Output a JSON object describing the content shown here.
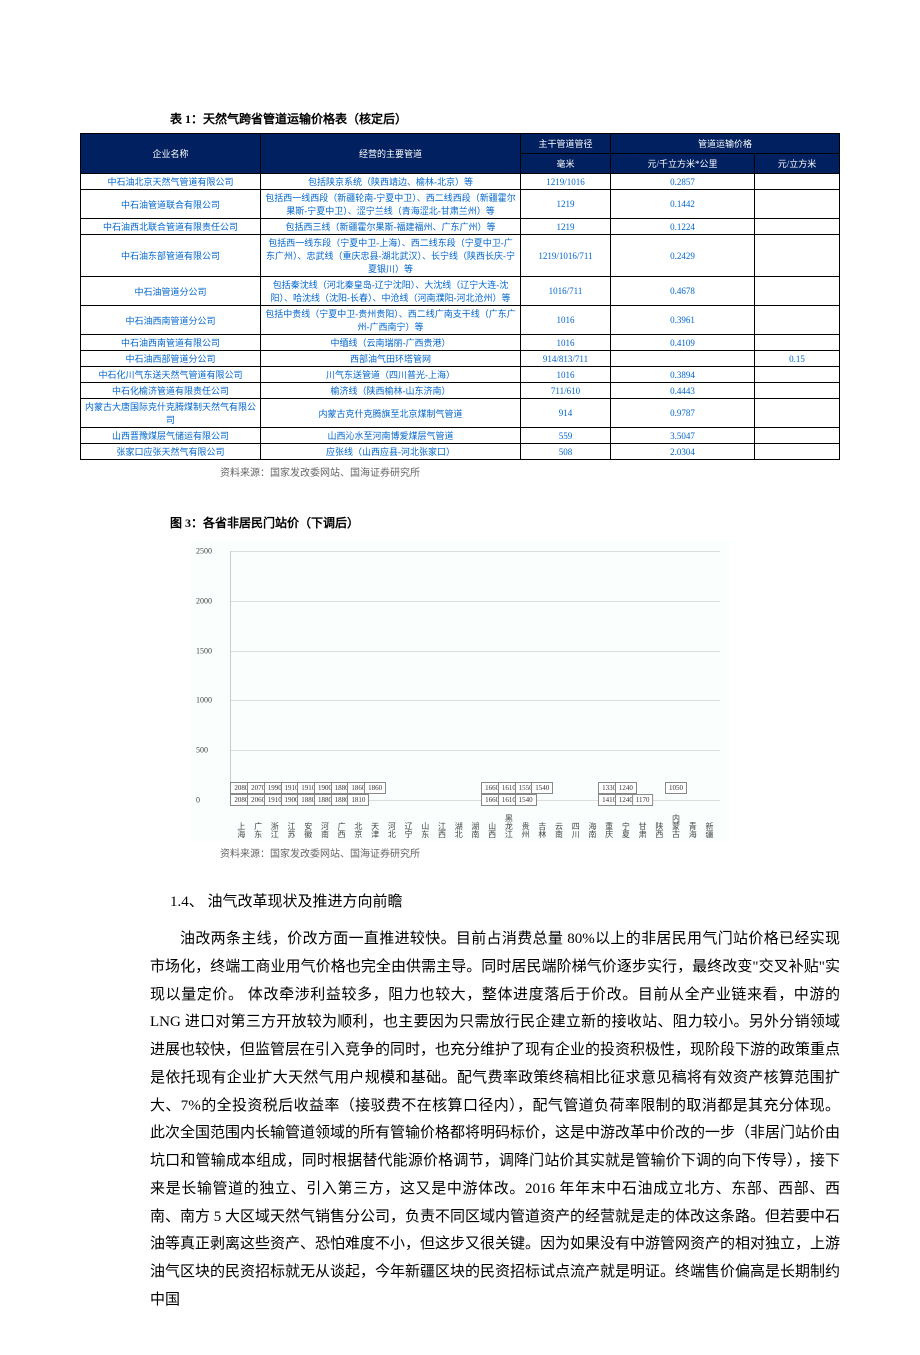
{
  "table": {
    "title": "表 1：天然气跨省管道运输价格表（核定后）",
    "headers": {
      "company": "企业名称",
      "pipeline": "经营的主要管道",
      "diameter_group": "主干管道管径",
      "diameter_unit": "毫米",
      "price_group": "管道运输价格",
      "price_unit1": "元/千立方米*公里",
      "price_unit2": "元/立方米"
    },
    "rows": [
      {
        "c": "中石油北京天然气管道有限公司",
        "p": "包括陕京系统（陕西靖边、榆林-北京）等",
        "d": "1219/1016",
        "p1": "0.2857",
        "p2": ""
      },
      {
        "c": "中石油管道联合有限公司",
        "p": "包括西一线西段（新疆轮南-宁夏中卫）、西二线西段（新疆霍尔果斯-宁夏中卫）、涩宁兰线（青海涩北-甘肃兰州）等",
        "d": "1219",
        "p1": "0.1442",
        "p2": ""
      },
      {
        "c": "中石油西北联合管道有限责任公司",
        "p": "包括西三线（新疆霍尔果斯-福建福州、广东广州）等",
        "d": "1219",
        "p1": "0.1224",
        "p2": ""
      },
      {
        "c": "中石油东部管道有限公司",
        "p": "包括西一线东段（宁夏中卫-上海）、西二线东段（宁夏中卫-广东广州）、忠武线（重庆忠县-湖北武汉）、长宁线（陕西长庆-宁夏银川）等",
        "d": "1219/1016/711",
        "p1": "0.2429",
        "p2": ""
      },
      {
        "c": "中石油管道分公司",
        "p": "包括秦沈线（河北秦皇岛-辽宁沈阳）、大沈线（辽宁大连-沈阳）、哈沈线（沈阳-长春）、中沧线（河南濮阳-河北沧州）等",
        "d": "1016/711",
        "p1": "0.4678",
        "p2": ""
      },
      {
        "c": "中石油西南管道分公司",
        "p": "包括中贵线（宁夏中卫-贵州贵阳）、西二线广南支干线（广东广州-广西南宁）等",
        "d": "1016",
        "p1": "0.3961",
        "p2": ""
      },
      {
        "c": "中石油西南管道有限公司",
        "p": "中缅线（云南瑞丽-广西贵港）",
        "d": "1016",
        "p1": "0.4109",
        "p2": ""
      },
      {
        "c": "中石油西部管道分公司",
        "p": "西部油气田环塔管网",
        "d": "914/813/711",
        "p1": "",
        "p2": "0.15"
      },
      {
        "c": "中石化川气东送天然气管道有限公司",
        "p": "川气东送管道（四川普光-上海）",
        "d": "1016",
        "p1": "0.3894",
        "p2": ""
      },
      {
        "c": "中石化榆济管道有限责任公司",
        "p": "榆济线（陕西榆林-山东济南）",
        "d": "711/610",
        "p1": "0.4443",
        "p2": ""
      },
      {
        "c": "内蒙古大唐国际克什克腾煤制天然气有限公司",
        "p": "内蒙古克什克腾旗至北京煤制气管道",
        "d": "914",
        "p1": "0.9787",
        "p2": ""
      },
      {
        "c": "山西晋豫煤层气储运有限公司",
        "p": "山西沁水至河南博爱煤层气管道",
        "d": "559",
        "p1": "3.5047",
        "p2": ""
      },
      {
        "c": "张家口应张天然气有限公司",
        "p": "应张线（山西应县-河北张家口）",
        "d": "508",
        "p1": "2.0304",
        "p2": ""
      }
    ],
    "source": "资料来源：国家发改委网站、国海证券研究所"
  },
  "chart": {
    "title": "图 3：各省非居民门站价（下调后）",
    "y_max": 2500,
    "y_step": 500,
    "y_ticks": [
      0,
      500,
      1000,
      1500,
      2000,
      2500
    ],
    "bar_color": "#7fc9a8",
    "grid_color": "#dddddd",
    "bg_color": "#fafffe",
    "data": [
      {
        "name": "上海",
        "top": 2080,
        "bot": 2080
      },
      {
        "name": "广东",
        "top": 2070,
        "bot": 2060
      },
      {
        "name": "浙江",
        "top": 1990,
        "bot": 1910
      },
      {
        "name": "江苏",
        "top": 1910,
        "bot": 1900
      },
      {
        "name": "安徽",
        "top": 1910,
        "bot": 1880
      },
      {
        "name": "河南",
        "top": 1900,
        "bot": 1880
      },
      {
        "name": "广西",
        "top": 1880,
        "bot": 1880
      },
      {
        "name": "北京",
        "top": 1860,
        "bot": 1810
      },
      {
        "name": "天津",
        "top": 1860,
        "bot": null
      },
      {
        "name": "河北",
        "top": null,
        "bot": null
      },
      {
        "name": "辽宁",
        "top": null,
        "bot": null
      },
      {
        "name": "山东",
        "top": null,
        "bot": null
      },
      {
        "name": "江西",
        "top": null,
        "bot": null
      },
      {
        "name": "湖北",
        "top": null,
        "bot": null
      },
      {
        "name": "湖南",
        "top": null,
        "bot": null
      },
      {
        "name": "山西",
        "top": 1660,
        "bot": 1660
      },
      {
        "name": "黑龙江",
        "top": 1610,
        "bot": 1610
      },
      {
        "name": "贵州",
        "top": 1550,
        "bot": 1540
      },
      {
        "name": "吉林",
        "top": 1540,
        "bot": null
      },
      {
        "name": "云南",
        "top": null,
        "bot": null
      },
      {
        "name": "四川",
        "top": null,
        "bot": null
      },
      {
        "name": "海南",
        "top": null,
        "bot": null
      },
      {
        "name": "重庆",
        "top": 1330,
        "bot": 1410
      },
      {
        "name": "宁夏",
        "top": 1240,
        "bot": 1240
      },
      {
        "name": "甘肃",
        "top": null,
        "bot": 1170
      },
      {
        "name": "陕西",
        "top": null,
        "bot": null
      },
      {
        "name": "内蒙古",
        "top": 1050,
        "bot": null
      },
      {
        "name": "青海",
        "top": null,
        "bot": null
      },
      {
        "name": "新疆",
        "top": null,
        "bot": null
      }
    ],
    "source": "资料来源：国家发改委网站、国海证券研究所"
  },
  "section": {
    "heading": "1.4、 油气改革现状及推进方向前瞻",
    "body": "油改两条主线，价改方面一直推进较快。目前占消费总量 80%以上的非居民用气门站价格已经实现市场化，终端工商业用气价格也完全由供需主导。同时居民端阶梯气价逐步实行，最终改变\"交叉补贴\"实现以量定价。 体改牵涉利益较多，阻力也较大，整体进度落后于价改。目前从全产业链来看，中游的 LNG 进口对第三方开放较为顺利，也主要因为只需放行民企建立新的接收站、阻力较小。另外分销领域进展也较快，但监管层在引入竞争的同时，也充分维护了现有企业的投资积极性，现阶段下游的政策重点是依托现有企业扩大天然气用户规模和基础。配气费率政策终稿相比征求意见稿将有效资产核算范围扩大、7%的全投资税后收益率（接驳费不在核算口径内），配气管道负荷率限制的取消都是其充分体现。 此次全国范围内长输管道领域的所有管输价格都将明码标价，这是中游改革中价改的一步（非居门站价由坑口和管输成本组成，同时根据替代能源价格调节，调降门站价其实就是管输价下调的向下传导），接下来是长输管道的独立、引入第三方，这又是中游体改。2016 年年末中石油成立北方、东部、西部、西南、南方 5 大区域天然气销售分公司，负责不同区域内管道资产的经营就是走的体改这条路。但若要中石油等真正剥离这些资产、恐怕难度不小，但这步又很关键。因为如果没有中游管网资产的相对独立，上游油气区块的民资招标就无从谈起，今年新疆区块的民资招标试点流产就是明证。终端售价偏高是长期制约中国"
  }
}
